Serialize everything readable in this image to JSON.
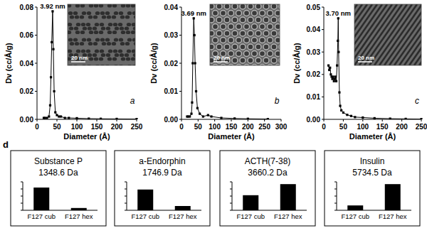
{
  "chart_data": [
    {
      "type": "line",
      "panel_label": "a",
      "inset_scale": "20 nm",
      "annotations": [
        "3.92 nm"
      ],
      "x_label": "Diameter (Å)",
      "y_label": "Dv (cc/Å/g)",
      "xlim": [
        0,
        250
      ],
      "xticks": [
        0,
        50,
        100,
        150,
        200,
        250
      ],
      "ylim": [
        0,
        0.08
      ],
      "yticks": [
        {
          "value": 0,
          "label": "0.00"
        },
        {
          "value": 0.02,
          "label": "0.02"
        },
        {
          "value": 0.04,
          "label": "0.04"
        },
        {
          "value": 0.06,
          "label": "0.06"
        },
        {
          "value": 0.08,
          "label": "0.08"
        }
      ],
      "grid": false,
      "x": [
        17,
        20,
        25,
        30,
        33,
        35,
        37,
        39.2,
        41,
        43,
        46,
        50,
        55,
        60,
        70,
        80,
        100,
        130,
        160,
        200,
        250
      ],
      "series": [
        {
          "color": "#000000",
          "marker": "square",
          "line_style": "solid",
          "values": [
            0.001,
            0.001,
            0.001,
            0.002,
            0.01,
            0.03,
            0.055,
            0.077,
            0.05,
            0.02,
            0.005,
            0.003,
            0.002,
            0.002,
            0.001,
            0.001,
            0.0008,
            0.0005,
            0.0004,
            0.0003,
            0.0002
          ]
        }
      ]
    },
    {
      "type": "line",
      "panel_label": "b",
      "inset_scale": "20 nm",
      "annotations": [
        "3.69 nm"
      ],
      "x_label": "Diameter (Å)",
      "y_label": "Dv (cc/Å/g)",
      "xlim": [
        0,
        300
      ],
      "xticks": [
        0,
        50,
        100,
        150,
        200,
        250,
        300
      ],
      "ylim": [
        0,
        0.04
      ],
      "yticks": [
        {
          "value": 0,
          "label": "0.00"
        },
        {
          "value": 0.01,
          "label": "0.01"
        },
        {
          "value": 0.02,
          "label": "0.02"
        },
        {
          "value": 0.03,
          "label": "0.03"
        },
        {
          "value": 0.04,
          "label": "0.04"
        }
      ],
      "grid": false,
      "x": [
        17,
        20,
        25,
        30,
        32,
        34,
        36.9,
        39,
        41,
        44,
        48,
        55,
        65,
        80,
        90,
        120,
        160,
        200,
        260
      ],
      "series": [
        {
          "color": "#000000",
          "marker": "square",
          "line_style": "solid",
          "values": [
            0.001,
            0.001,
            0.001,
            0.002,
            0.006,
            0.02,
            0.036,
            0.03,
            0.02,
            0.01,
            0.004,
            0.002,
            0.001,
            0.0015,
            0.001,
            0.0005,
            0.0003,
            0.0002,
            0.0001
          ]
        }
      ]
    },
    {
      "type": "line",
      "panel_label": "c",
      "inset_scale": "20 nm",
      "annotations": [
        "3.70 nm"
      ],
      "x_label": "Diameter (Å)",
      "y_label": "Dv (cc/Å/g)",
      "xlim": [
        0,
        250
      ],
      "xticks": [
        0,
        50,
        100,
        150,
        200,
        250
      ],
      "ylim": [
        0,
        0.05
      ],
      "yticks": [
        {
          "value": 0,
          "label": "0.00"
        },
        {
          "value": 0.01,
          "label": "0.01"
        },
        {
          "value": 0.02,
          "label": "0.02"
        },
        {
          "value": 0.03,
          "label": "0.03"
        },
        {
          "value": 0.04,
          "label": "0.04"
        },
        {
          "value": 0.05,
          "label": "0.05"
        }
      ],
      "grid": false,
      "x": [
        12,
        14,
        16,
        18,
        20,
        22,
        24,
        26,
        28,
        30,
        32,
        34,
        36,
        37,
        38,
        40,
        42,
        45,
        50,
        60,
        70,
        80,
        100,
        130,
        170,
        210,
        250
      ],
      "series": [
        {
          "color": "#000000",
          "marker": "square",
          "line_style": "solid",
          "values": [
            0.024,
            0.022,
            0.023,
            0.02,
            0.019,
            0.018,
            0.019,
            0.017,
            0.018,
            0.019,
            0.017,
            0.024,
            0.035,
            0.045,
            0.03,
            0.012,
            0.006,
            0.004,
            0.003,
            0.002,
            0.0015,
            0.001,
            0.0008,
            0.0005,
            0.0003,
            0.0002,
            0.0001
          ]
        }
      ]
    },
    {
      "type": "bar",
      "panel_label": "d",
      "title": "Substance P",
      "subtitle": "1348.6 Da",
      "categories": [
        "F127 cub",
        "F127 hex"
      ],
      "values": [
        80,
        8
      ],
      "color": "#000000",
      "ylim": [
        0,
        100
      ],
      "yticks": [
        0,
        25,
        50,
        75,
        100
      ],
      "tick_labels": "x",
      "grid": false
    },
    {
      "type": "bar",
      "title": "a-Endorphin",
      "subtitle": "1746.9 Da",
      "categories": [
        "F127 cub",
        "F127 hex"
      ],
      "values": [
        73,
        15
      ],
      "color": "#000000",
      "ylim": [
        0,
        100
      ],
      "yticks": [
        0,
        25,
        50,
        75,
        100
      ],
      "tick_labels": "x",
      "grid": false
    },
    {
      "type": "bar",
      "title": "ACTH(7-38)",
      "subtitle": "3660.2 Da",
      "categories": [
        "F127 cub",
        "F127 hex"
      ],
      "values": [
        53,
        92
      ],
      "color": "#000000",
      "ylim": [
        0,
        100
      ],
      "yticks": [
        0,
        25,
        50,
        75,
        100
      ],
      "tick_labels": "x",
      "grid": false
    },
    {
      "type": "bar",
      "title": "Insulin",
      "subtitle": "5734.5 Da",
      "categories": [
        "F127 cub",
        "F127 hex"
      ],
      "values": [
        17,
        92
      ],
      "color": "#000000",
      "ylim": [
        0,
        100
      ],
      "yticks": [
        0,
        25,
        50,
        75,
        100
      ],
      "tick_labels": "x",
      "grid": false
    }
  ]
}
